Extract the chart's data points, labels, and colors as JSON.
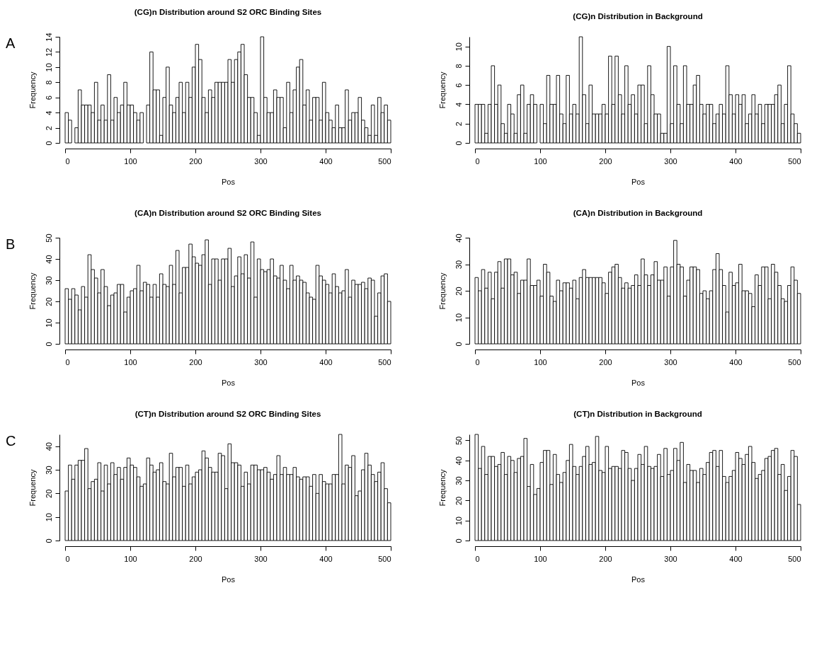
{
  "chart_data": [
    {
      "type": "histogram",
      "title": "(CG)n Distribution around S2 ORC Binding Sites",
      "xlabel": "Pos",
      "ylabel": "Frequency",
      "annotations": [
        "A"
      ],
      "color": "#ffffff",
      "grid": false,
      "xlim": [
        0,
        500
      ],
      "xticks": [
        0,
        100,
        200,
        300,
        400,
        500
      ],
      "ylim": [
        0,
        14
      ],
      "yticks": [
        0,
        2,
        4,
        6,
        8,
        10,
        12,
        14
      ],
      "bins": [
        0,
        5,
        10,
        15,
        20,
        25,
        30,
        35,
        40,
        45,
        50,
        55,
        60,
        65,
        70,
        75,
        80,
        85,
        90,
        95,
        100,
        105,
        110,
        115,
        120,
        125,
        130,
        135,
        140,
        145,
        150,
        155,
        160,
        165,
        170,
        175,
        180,
        185,
        190,
        195,
        200,
        205,
        210,
        215,
        220,
        225,
        230,
        235,
        240,
        245,
        250,
        255,
        260,
        265,
        270,
        275,
        280,
        285,
        290,
        295,
        300,
        305,
        310,
        315,
        320,
        325,
        330,
        335,
        340,
        345,
        350,
        355,
        360,
        365,
        370,
        375,
        380,
        385,
        390,
        395,
        400,
        405,
        410,
        415,
        420,
        425,
        430,
        435,
        440,
        445,
        450,
        455,
        460,
        465,
        470,
        475,
        480,
        485,
        490,
        495,
        500
      ],
      "values": [
        4,
        3,
        0,
        2,
        7,
        5,
        5,
        5,
        4,
        8,
        3,
        5,
        3,
        9,
        3,
        6,
        4,
        5,
        8,
        5,
        5,
        4,
        3,
        4,
        0,
        5,
        12,
        7,
        7,
        1,
        6,
        10,
        5,
        4,
        6,
        8,
        4,
        8,
        6,
        10,
        13,
        11,
        6,
        4,
        7,
        6,
        8,
        8,
        8,
        8,
        11,
        8,
        11,
        12,
        13,
        9,
        6,
        6,
        4,
        1,
        14,
        6,
        4,
        4,
        7,
        6,
        6,
        2,
        8,
        4,
        7,
        10,
        11,
        5,
        7,
        3,
        6,
        6,
        3,
        8,
        4,
        3,
        2,
        5,
        2,
        2,
        7,
        3,
        4,
        4,
        6,
        3,
        2,
        1,
        5,
        1,
        6,
        4,
        5,
        3
      ]
    },
    {
      "type": "histogram",
      "title": "(CG)n Distribution in Background",
      "xlabel": "Pos",
      "ylabel": "Frequency",
      "color": "#ffffff",
      "grid": false,
      "xlim": [
        0,
        500
      ],
      "xticks": [
        0,
        100,
        200,
        300,
        400,
        500
      ],
      "ylim": [
        0,
        11
      ],
      "yticks": [
        0,
        2,
        4,
        6,
        8,
        10
      ],
      "bins": [
        0,
        5,
        10,
        15,
        20,
        25,
        30,
        35,
        40,
        45,
        50,
        55,
        60,
        65,
        70,
        75,
        80,
        85,
        90,
        95,
        100,
        105,
        110,
        115,
        120,
        125,
        130,
        135,
        140,
        145,
        150,
        155,
        160,
        165,
        170,
        175,
        180,
        185,
        190,
        195,
        200,
        205,
        210,
        215,
        220,
        225,
        230,
        235,
        240,
        245,
        250,
        255,
        260,
        265,
        270,
        275,
        280,
        285,
        290,
        295,
        300,
        305,
        310,
        315,
        320,
        325,
        330,
        335,
        340,
        345,
        350,
        355,
        360,
        365,
        370,
        375,
        380,
        385,
        390,
        395,
        400,
        405,
        410,
        415,
        420,
        425,
        430,
        435,
        440,
        445,
        450,
        455,
        460,
        465,
        470,
        475,
        480,
        485,
        490,
        495,
        500
      ],
      "values": [
        4,
        4,
        4,
        1,
        4,
        8,
        4,
        6,
        2,
        1,
        4,
        3,
        1,
        5,
        6,
        1,
        4,
        5,
        4,
        0,
        4,
        2,
        7,
        4,
        4,
        7,
        3,
        2,
        7,
        3,
        4,
        3,
        11,
        5,
        2,
        6,
        3,
        3,
        3,
        4,
        3,
        9,
        4,
        9,
        5,
        3,
        8,
        4,
        5,
        3,
        6,
        6,
        2,
        8,
        5,
        3,
        3,
        1,
        1,
        10,
        2,
        8,
        4,
        2,
        8,
        4,
        4,
        6,
        7,
        4,
        3,
        4,
        4,
        2,
        3,
        4,
        3,
        8,
        5,
        3,
        5,
        4,
        5,
        2,
        3,
        5,
        3,
        4,
        2,
        4,
        4,
        4,
        5,
        6,
        2,
        4,
        8,
        3,
        2,
        1
      ]
    },
    {
      "type": "histogram",
      "title": "(CA)n Distribution around S2 ORC Binding Sites",
      "xlabel": "Pos",
      "ylabel": "Frequency",
      "annotations": [
        "B"
      ],
      "color": "#ffffff",
      "grid": false,
      "xlim": [
        0,
        500
      ],
      "xticks": [
        0,
        100,
        200,
        300,
        400,
        500
      ],
      "ylim": [
        0,
        50
      ],
      "yticks": [
        0,
        10,
        20,
        30,
        40,
        50
      ],
      "bins": [
        0,
        5,
        10,
        15,
        20,
        25,
        30,
        35,
        40,
        45,
        50,
        55,
        60,
        65,
        70,
        75,
        80,
        85,
        90,
        95,
        100,
        105,
        110,
        115,
        120,
        125,
        130,
        135,
        140,
        145,
        150,
        155,
        160,
        165,
        170,
        175,
        180,
        185,
        190,
        195,
        200,
        205,
        210,
        215,
        220,
        225,
        230,
        235,
        240,
        245,
        250,
        255,
        260,
        265,
        270,
        275,
        280,
        285,
        290,
        295,
        300,
        305,
        310,
        315,
        320,
        325,
        330,
        335,
        340,
        345,
        350,
        355,
        360,
        365,
        370,
        375,
        380,
        385,
        390,
        395,
        400,
        405,
        410,
        415,
        420,
        425,
        430,
        435,
        440,
        445,
        450,
        455,
        460,
        465,
        470,
        475,
        480,
        485,
        490,
        495,
        500
      ],
      "values": [
        26,
        21,
        26,
        23,
        16,
        27,
        22,
        42,
        35,
        31,
        24,
        35,
        27,
        18,
        23,
        24,
        28,
        28,
        15,
        22,
        25,
        26,
        37,
        25,
        29,
        28,
        22,
        28,
        22,
        33,
        28,
        27,
        37,
        28,
        44,
        24,
        36,
        36,
        47,
        41,
        38,
        37,
        42,
        49,
        28,
        40,
        40,
        30,
        40,
        40,
        45,
        27,
        32,
        41,
        33,
        42,
        31,
        48,
        22,
        40,
        35,
        34,
        35,
        40,
        32,
        31,
        37,
        30,
        26,
        37,
        30,
        32,
        30,
        29,
        24,
        22,
        21,
        37,
        32,
        30,
        28,
        24,
        33,
        27,
        24,
        25,
        35,
        22,
        30,
        28,
        28,
        29,
        26,
        31,
        30,
        13,
        24,
        32,
        33,
        20
      ]
    },
    {
      "type": "histogram",
      "title": "(CA)n Distribution in Background",
      "xlabel": "Pos",
      "ylabel": "Frequency",
      "color": "#ffffff",
      "grid": false,
      "xlim": [
        0,
        500
      ],
      "xticks": [
        0,
        100,
        200,
        300,
        400,
        500
      ],
      "ylim": [
        0,
        40
      ],
      "yticks": [
        0,
        10,
        20,
        30,
        40
      ],
      "bins": [
        0,
        5,
        10,
        15,
        20,
        25,
        30,
        35,
        40,
        45,
        50,
        55,
        60,
        65,
        70,
        75,
        80,
        85,
        90,
        95,
        100,
        105,
        110,
        115,
        120,
        125,
        130,
        135,
        140,
        145,
        150,
        155,
        160,
        165,
        170,
        175,
        180,
        185,
        190,
        195,
        200,
        205,
        210,
        215,
        220,
        225,
        230,
        235,
        240,
        245,
        250,
        255,
        260,
        265,
        270,
        275,
        280,
        285,
        290,
        295,
        300,
        305,
        310,
        315,
        320,
        325,
        330,
        335,
        340,
        345,
        350,
        355,
        360,
        365,
        370,
        375,
        380,
        385,
        390,
        395,
        400,
        405,
        410,
        415,
        420,
        425,
        430,
        435,
        440,
        445,
        450,
        455,
        460,
        465,
        470,
        475,
        480,
        485,
        490,
        495,
        500
      ],
      "values": [
        25,
        20,
        28,
        21,
        27,
        17,
        27,
        31,
        21,
        32,
        32,
        26,
        27,
        19,
        24,
        24,
        32,
        22,
        22,
        24,
        18,
        30,
        27,
        18,
        16,
        24,
        20,
        23,
        23,
        21,
        24,
        17,
        25,
        28,
        25,
        25,
        25,
        25,
        25,
        23,
        19,
        27,
        29,
        30,
        25,
        21,
        23,
        21,
        22,
        26,
        22,
        32,
        26,
        22,
        26,
        31,
        24,
        24,
        29,
        18,
        29,
        39,
        30,
        29,
        18,
        24,
        29,
        29,
        28,
        19,
        20,
        17,
        20,
        28,
        34,
        28,
        22,
        12,
        27,
        22,
        23,
        30,
        20,
        20,
        19,
        14,
        26,
        22,
        29,
        29,
        17,
        30,
        27,
        22,
        17,
        16,
        22,
        29,
        24,
        19
      ]
    },
    {
      "type": "histogram",
      "title": "(CT)n Distribution around S2 ORC Binding Sites",
      "xlabel": "Pos",
      "ylabel": "Frequency",
      "annotations": [
        "C"
      ],
      "color": "#ffffff",
      "grid": false,
      "xlim": [
        0,
        500
      ],
      "xticks": [
        0,
        100,
        200,
        300,
        400,
        500
      ],
      "ylim": [
        0,
        45
      ],
      "yticks": [
        0,
        10,
        20,
        30,
        40
      ],
      "bins": [
        0,
        5,
        10,
        15,
        20,
        25,
        30,
        35,
        40,
        45,
        50,
        55,
        60,
        65,
        70,
        75,
        80,
        85,
        90,
        95,
        100,
        105,
        110,
        115,
        120,
        125,
        130,
        135,
        140,
        145,
        150,
        155,
        160,
        165,
        170,
        175,
        180,
        185,
        190,
        195,
        200,
        205,
        210,
        215,
        220,
        225,
        230,
        235,
        240,
        245,
        250,
        255,
        260,
        265,
        270,
        275,
        280,
        285,
        290,
        295,
        300,
        305,
        310,
        315,
        320,
        325,
        330,
        335,
        340,
        345,
        350,
        355,
        360,
        365,
        370,
        375,
        380,
        385,
        390,
        395,
        400,
        405,
        410,
        415,
        420,
        425,
        430,
        435,
        440,
        445,
        450,
        455,
        460,
        465,
        470,
        475,
        480,
        485,
        490,
        495,
        500
      ],
      "values": [
        21,
        32,
        26,
        32,
        34,
        34,
        39,
        22,
        25,
        26,
        33,
        21,
        32,
        24,
        33,
        28,
        31,
        26,
        31,
        35,
        32,
        31,
        27,
        23,
        24,
        35,
        32,
        29,
        30,
        33,
        25,
        24,
        37,
        27,
        31,
        31,
        23,
        32,
        24,
        27,
        29,
        30,
        38,
        35,
        31,
        29,
        29,
        37,
        36,
        22,
        41,
        33,
        33,
        32,
        23,
        29,
        24,
        32,
        32,
        30,
        30,
        31,
        29,
        26,
        28,
        36,
        28,
        31,
        28,
        28,
        31,
        27,
        26,
        27,
        27,
        23,
        28,
        20,
        28,
        25,
        24,
        24,
        28,
        28,
        45,
        24,
        32,
        31,
        36,
        19,
        21,
        30,
        37,
        32,
        28,
        25,
        29,
        33,
        22,
        16
      ]
    },
    {
      "type": "histogram",
      "title": "(CT)n Distribution in Background",
      "xlabel": "Pos",
      "ylabel": "Frequency",
      "color": "#ffffff",
      "grid": false,
      "xlim": [
        0,
        500
      ],
      "xticks": [
        0,
        100,
        200,
        300,
        400,
        500
      ],
      "ylim": [
        0,
        53
      ],
      "yticks": [
        0,
        10,
        20,
        30,
        40,
        50
      ],
      "bins": [
        0,
        5,
        10,
        15,
        20,
        25,
        30,
        35,
        40,
        45,
        50,
        55,
        60,
        65,
        70,
        75,
        80,
        85,
        90,
        95,
        100,
        105,
        110,
        115,
        120,
        125,
        130,
        135,
        140,
        145,
        150,
        155,
        160,
        165,
        170,
        175,
        180,
        185,
        190,
        195,
        200,
        205,
        210,
        215,
        220,
        225,
        230,
        235,
        240,
        245,
        250,
        255,
        260,
        265,
        270,
        275,
        280,
        285,
        290,
        295,
        300,
        305,
        310,
        315,
        320,
        325,
        330,
        335,
        340,
        345,
        350,
        355,
        360,
        365,
        370,
        375,
        380,
        385,
        390,
        395,
        400,
        405,
        410,
        415,
        420,
        425,
        430,
        435,
        440,
        445,
        450,
        455,
        460,
        465,
        470,
        475,
        480,
        485,
        490,
        495,
        500
      ],
      "values": [
        53,
        36,
        47,
        33,
        42,
        42,
        37,
        38,
        44,
        33,
        42,
        40,
        34,
        41,
        42,
        51,
        27,
        38,
        23,
        26,
        39,
        45,
        45,
        28,
        43,
        33,
        29,
        34,
        40,
        48,
        37,
        33,
        37,
        42,
        47,
        38,
        39,
        52,
        35,
        34,
        47,
        36,
        37,
        37,
        36,
        45,
        44,
        36,
        30,
        36,
        43,
        38,
        47,
        37,
        36,
        37,
        43,
        32,
        46,
        33,
        35,
        46,
        40,
        49,
        29,
        38,
        35,
        35,
        29,
        36,
        33,
        39,
        44,
        45,
        37,
        45,
        32,
        29,
        32,
        35,
        44,
        41,
        38,
        43,
        47,
        39,
        31,
        33,
        35,
        41,
        42,
        45,
        46,
        33,
        38,
        25,
        32,
        45,
        42,
        18
      ]
    }
  ]
}
